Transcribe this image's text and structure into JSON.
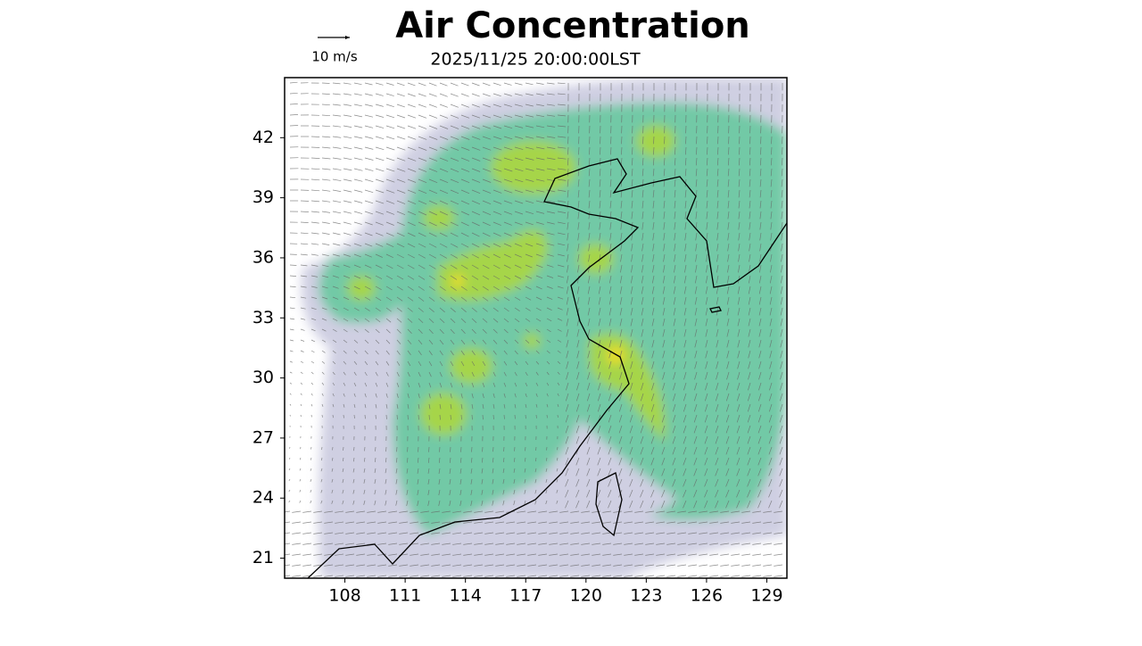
{
  "title": "Air Concentration",
  "subtitle": "2025/11/25 20:00:00LST",
  "wind_legend": "10 m/s",
  "map": {
    "xlim": [
      105,
      130
    ],
    "ylim": [
      20,
      45
    ],
    "xticks": [
      108,
      111,
      114,
      117,
      120,
      123,
      126,
      129
    ],
    "yticks": [
      21,
      24,
      27,
      30,
      33,
      36,
      39,
      42
    ]
  }
}
